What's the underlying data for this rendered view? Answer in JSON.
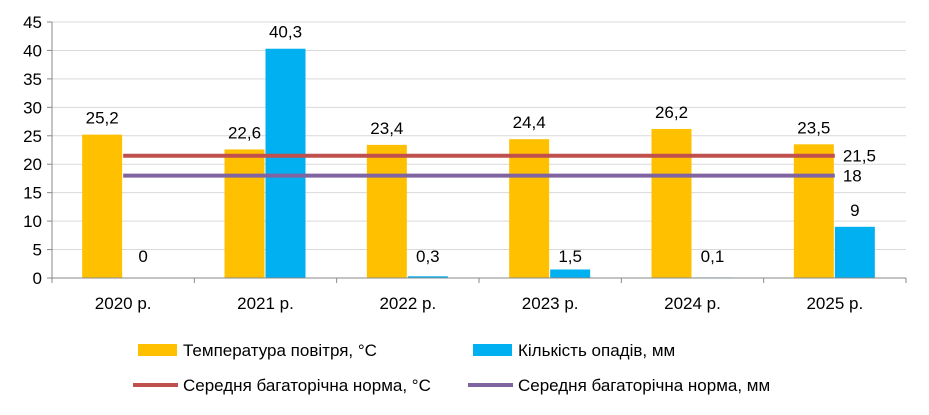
{
  "chart_data": {
    "type": "bar",
    "categories": [
      "2020 р.",
      "2021 р.",
      "2022 р.",
      "2023 р.",
      "2024 р.",
      "2025 р."
    ],
    "ylim": [
      0,
      45
    ],
    "yticks": [
      0,
      5,
      10,
      15,
      20,
      25,
      30,
      35,
      40,
      45
    ],
    "grid": true,
    "legend_position": "bottom",
    "series": [
      {
        "name": "Температура повітря, °С",
        "kind": "bar",
        "color": "#FFC000",
        "values": [
          25.2,
          22.6,
          23.4,
          24.4,
          26.2,
          23.5
        ],
        "labels": [
          "25,2",
          "22,6",
          "23,4",
          "24,4",
          "26,2",
          "23,5"
        ]
      },
      {
        "name": "Кількість опадів, мм",
        "kind": "bar",
        "color": "#00B0F0",
        "values": [
          0,
          40.3,
          0.3,
          1.5,
          0.1,
          9
        ],
        "labels": [
          "0",
          "40,3",
          "0,3",
          "1,5",
          "0,1",
          "9"
        ]
      },
      {
        "name": "Середня багаторічна норма, °С",
        "kind": "line",
        "color": "#C0504D",
        "values": [
          21.5,
          21.5,
          21.5,
          21.5,
          21.5,
          21.5
        ],
        "end_label": "21,5"
      },
      {
        "name": "Середня багаторічна норма, мм",
        "kind": "line",
        "color": "#8064A2",
        "values": [
          18,
          18,
          18,
          18,
          18,
          18
        ],
        "end_label": "18"
      }
    ]
  }
}
